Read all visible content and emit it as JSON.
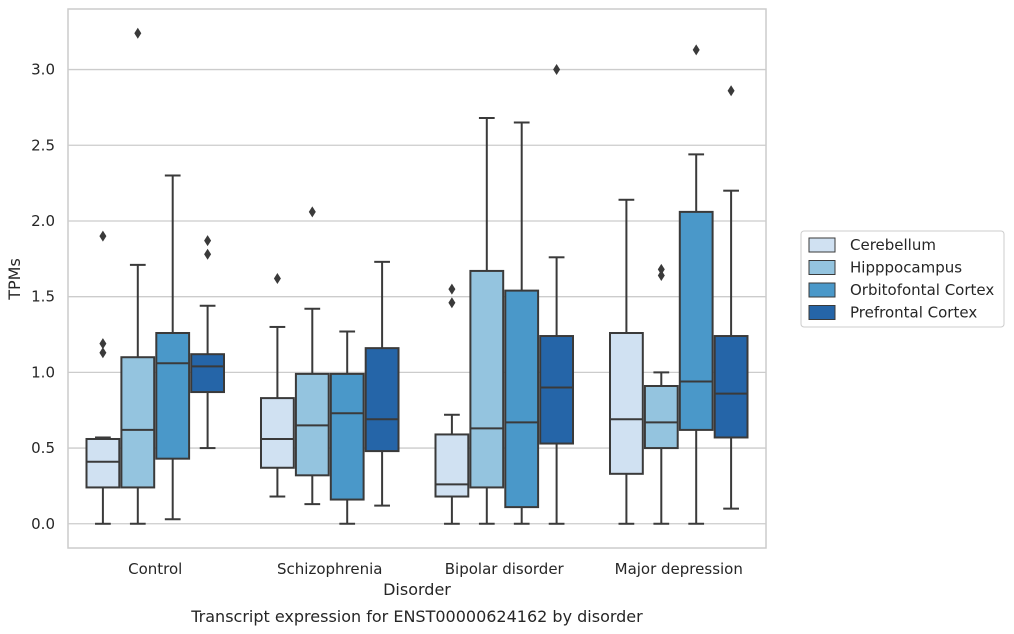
{
  "chart_data": {
    "type": "box",
    "caption": "Transcript expression for ENST00000624162 by disorder",
    "xlabel": "Disorder",
    "ylabel": "TPMs",
    "ylim": [
      -0.16,
      3.4
    ],
    "yticks": [
      0.0,
      0.5,
      1.0,
      1.5,
      2.0,
      2.5,
      3.0
    ],
    "ytick_labels": [
      "0.0",
      "0.5",
      "1.0",
      "1.5",
      "2.0",
      "2.5",
      "3.0"
    ],
    "grid": "horizontal",
    "legend_placement": "outside-right",
    "categories": [
      "Control",
      "Schizophrenia",
      "Bipolar disorder",
      "Major depression"
    ],
    "series": [
      {
        "name": "Cerebellum",
        "color": "#d0e1f2",
        "boxes": [
          {
            "whisker_low": 0.0,
            "q1": 0.24,
            "median": 0.41,
            "q3": 0.56,
            "whisker_high": 0.57,
            "outliers": [
              1.13,
              1.19,
              1.9
            ]
          },
          {
            "whisker_low": 0.18,
            "q1": 0.37,
            "median": 0.56,
            "q3": 0.83,
            "whisker_high": 1.3,
            "outliers": [
              1.62
            ]
          },
          {
            "whisker_low": 0.0,
            "q1": 0.18,
            "median": 0.26,
            "q3": 0.59,
            "whisker_high": 0.72,
            "outliers": [
              1.46,
              1.55
            ]
          },
          {
            "whisker_low": 0.0,
            "q1": 0.33,
            "median": 0.69,
            "q3": 1.26,
            "whisker_high": 2.14,
            "outliers": []
          }
        ]
      },
      {
        "name": "Hipppocampus",
        "color": "#94c4df",
        "boxes": [
          {
            "whisker_low": 0.0,
            "q1": 0.24,
            "median": 0.62,
            "q3": 1.1,
            "whisker_high": 1.71,
            "outliers": [
              3.24
            ]
          },
          {
            "whisker_low": 0.13,
            "q1": 0.32,
            "median": 0.65,
            "q3": 0.99,
            "whisker_high": 1.42,
            "outliers": [
              2.06
            ]
          },
          {
            "whisker_low": 0.0,
            "q1": 0.24,
            "median": 0.63,
            "q3": 1.67,
            "whisker_high": 2.68,
            "outliers": []
          },
          {
            "whisker_low": 0.0,
            "q1": 0.5,
            "median": 0.67,
            "q3": 0.91,
            "whisker_high": 1.0,
            "outliers": [
              1.64,
              1.68
            ]
          }
        ]
      },
      {
        "name": "Orbitofontal Cortex",
        "color": "#4a98c9",
        "boxes": [
          {
            "whisker_low": 0.03,
            "q1": 0.43,
            "median": 1.06,
            "q3": 1.26,
            "whisker_high": 2.3,
            "outliers": []
          },
          {
            "whisker_low": 0.0,
            "q1": 0.16,
            "median": 0.73,
            "q3": 0.99,
            "whisker_high": 1.27,
            "outliers": []
          },
          {
            "whisker_low": 0.0,
            "q1": 0.11,
            "median": 0.67,
            "q3": 1.54,
            "whisker_high": 2.65,
            "outliers": []
          },
          {
            "whisker_low": 0.0,
            "q1": 0.62,
            "median": 0.94,
            "q3": 2.06,
            "whisker_high": 2.44,
            "outliers": [
              3.13
            ]
          }
        ]
      },
      {
        "name": "Prefrontal Cortex",
        "color": "#2565a8",
        "boxes": [
          {
            "whisker_low": 0.5,
            "q1": 0.87,
            "median": 1.04,
            "q3": 1.12,
            "whisker_high": 1.44,
            "outliers": [
              1.78,
              1.87
            ]
          },
          {
            "whisker_low": 0.12,
            "q1": 0.48,
            "median": 0.69,
            "q3": 1.16,
            "whisker_high": 1.73,
            "outliers": []
          },
          {
            "whisker_low": 0.0,
            "q1": 0.53,
            "median": 0.9,
            "q3": 1.24,
            "whisker_high": 1.76,
            "outliers": [
              3.0
            ]
          },
          {
            "whisker_low": 0.1,
            "q1": 0.57,
            "median": 0.86,
            "q3": 1.24,
            "whisker_high": 2.2,
            "outliers": [
              2.86
            ]
          }
        ]
      }
    ],
    "colors": {
      "line": "#3a3a3a",
      "grid": "#cccccc",
      "frame": "#cccccc"
    }
  }
}
